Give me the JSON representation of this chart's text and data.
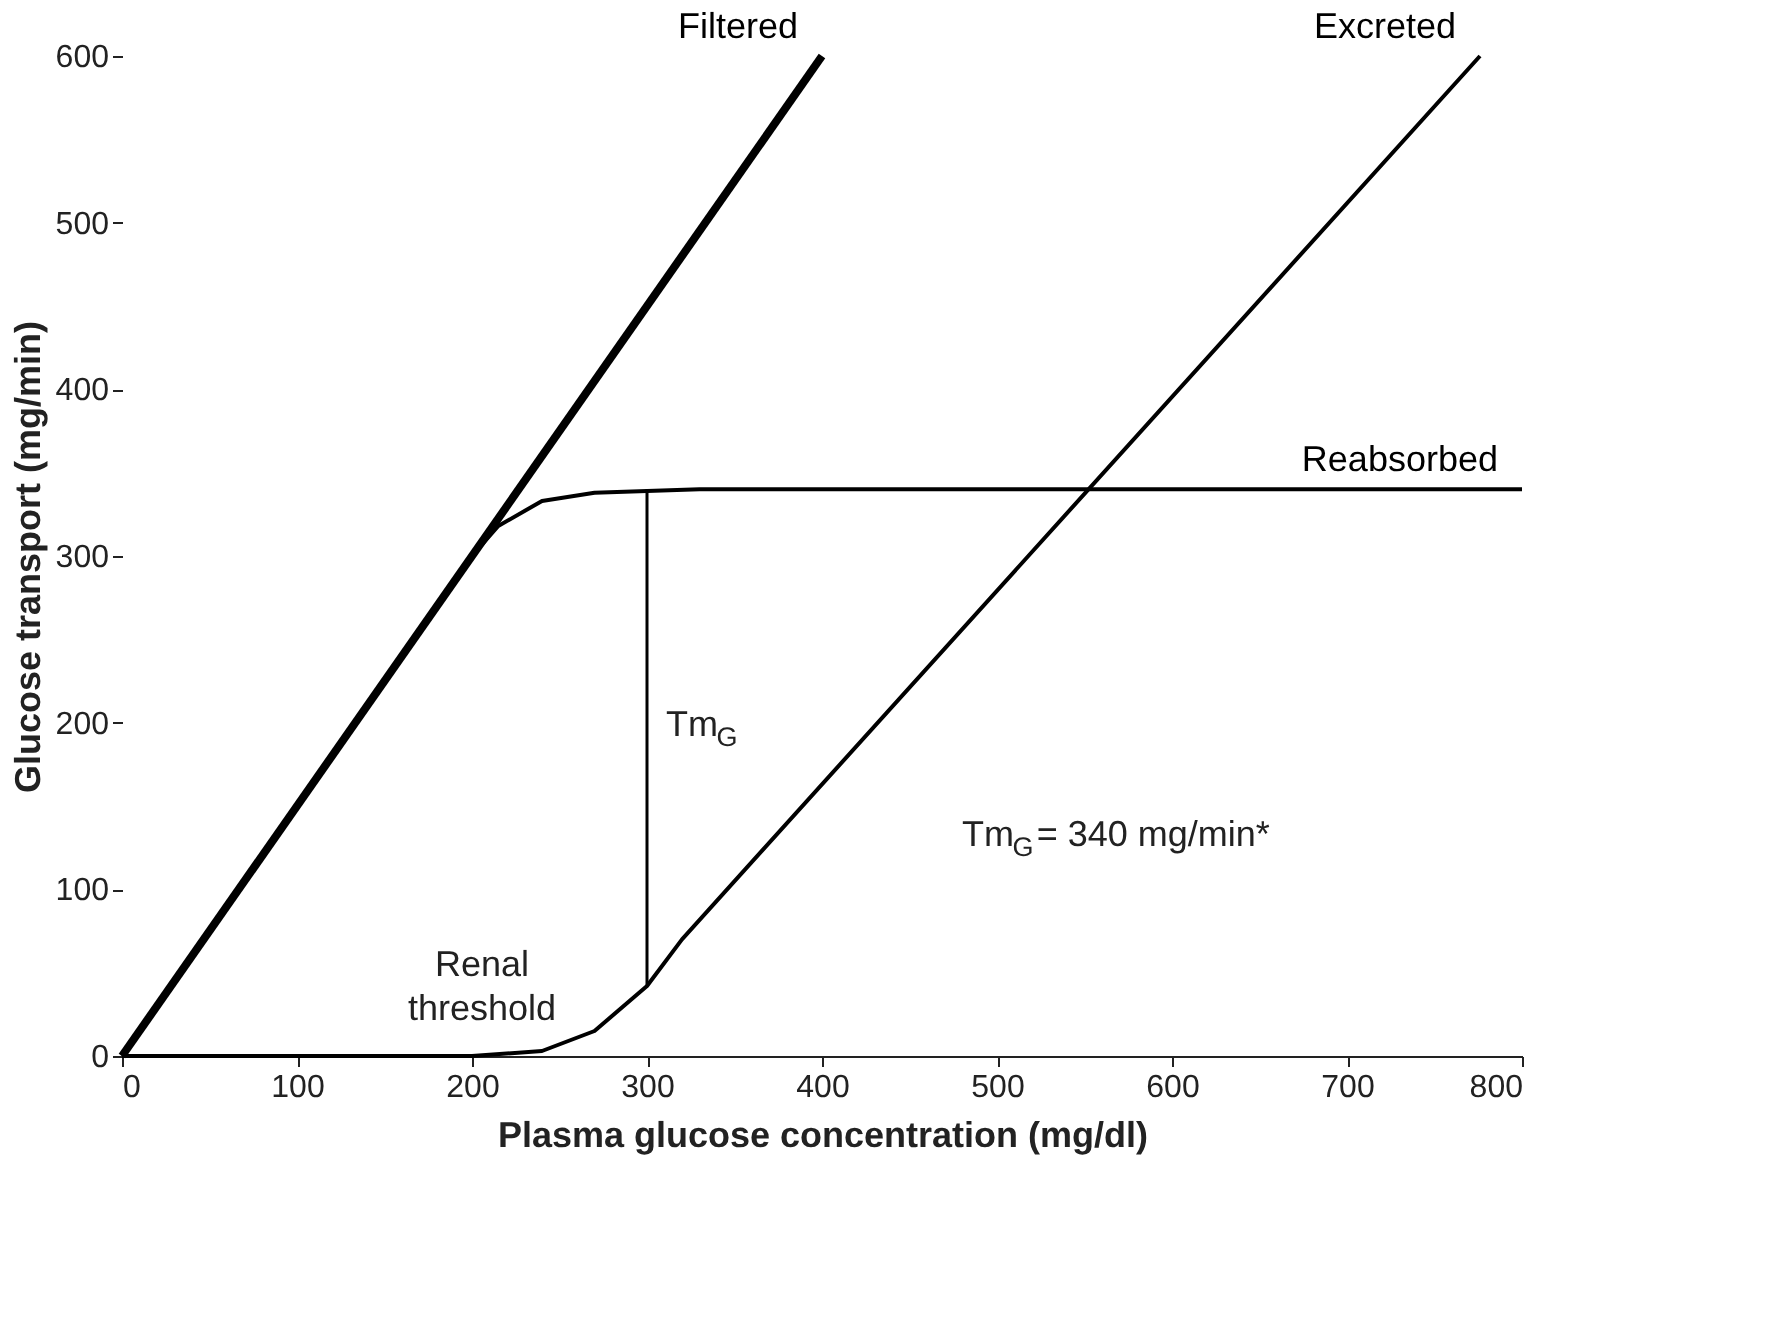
{
  "chart_data": {
    "type": "line",
    "xlabel": "Plasma glucose concentration (mg/dl)",
    "ylabel": "Glucose transport (mg/min)",
    "xlim": [
      0,
      800
    ],
    "ylim": [
      0,
      600
    ],
    "xticks": [
      0,
      100,
      200,
      300,
      400,
      500,
      600,
      700,
      800
    ],
    "yticks": [
      0,
      100,
      200,
      300,
      400,
      500,
      600
    ],
    "grid": false,
    "line_style": "solid",
    "marker": "none",
    "series": [
      {
        "name": "Filtered",
        "color": "#000000",
        "x": [
          0,
          400
        ],
        "values": [
          0,
          600
        ]
      },
      {
        "name": "Excreted",
        "color": "#000000",
        "x": [
          0,
          200,
          240,
          270,
          300,
          320,
          776
        ],
        "values": [
          0,
          0,
          3,
          15,
          42,
          70,
          600
        ]
      },
      {
        "name": "Reabsorbed",
        "color": "#000000",
        "x": [
          0,
          200,
          215,
          240,
          270,
          330,
          800
        ],
        "values": [
          0,
          300,
          318,
          333,
          338,
          340,
          340
        ]
      },
      {
        "color": "#000000",
        "x": [
          300,
          300
        ],
        "values": [
          42,
          340
        ]
      }
    ],
    "annotations": [
      {
        "text": "Renal threshold",
        "x": 200,
        "y": 0
      },
      "Tm$_{G}$",
      "Tm$_{G}$= 340 mg/min*"
    ]
  }
}
